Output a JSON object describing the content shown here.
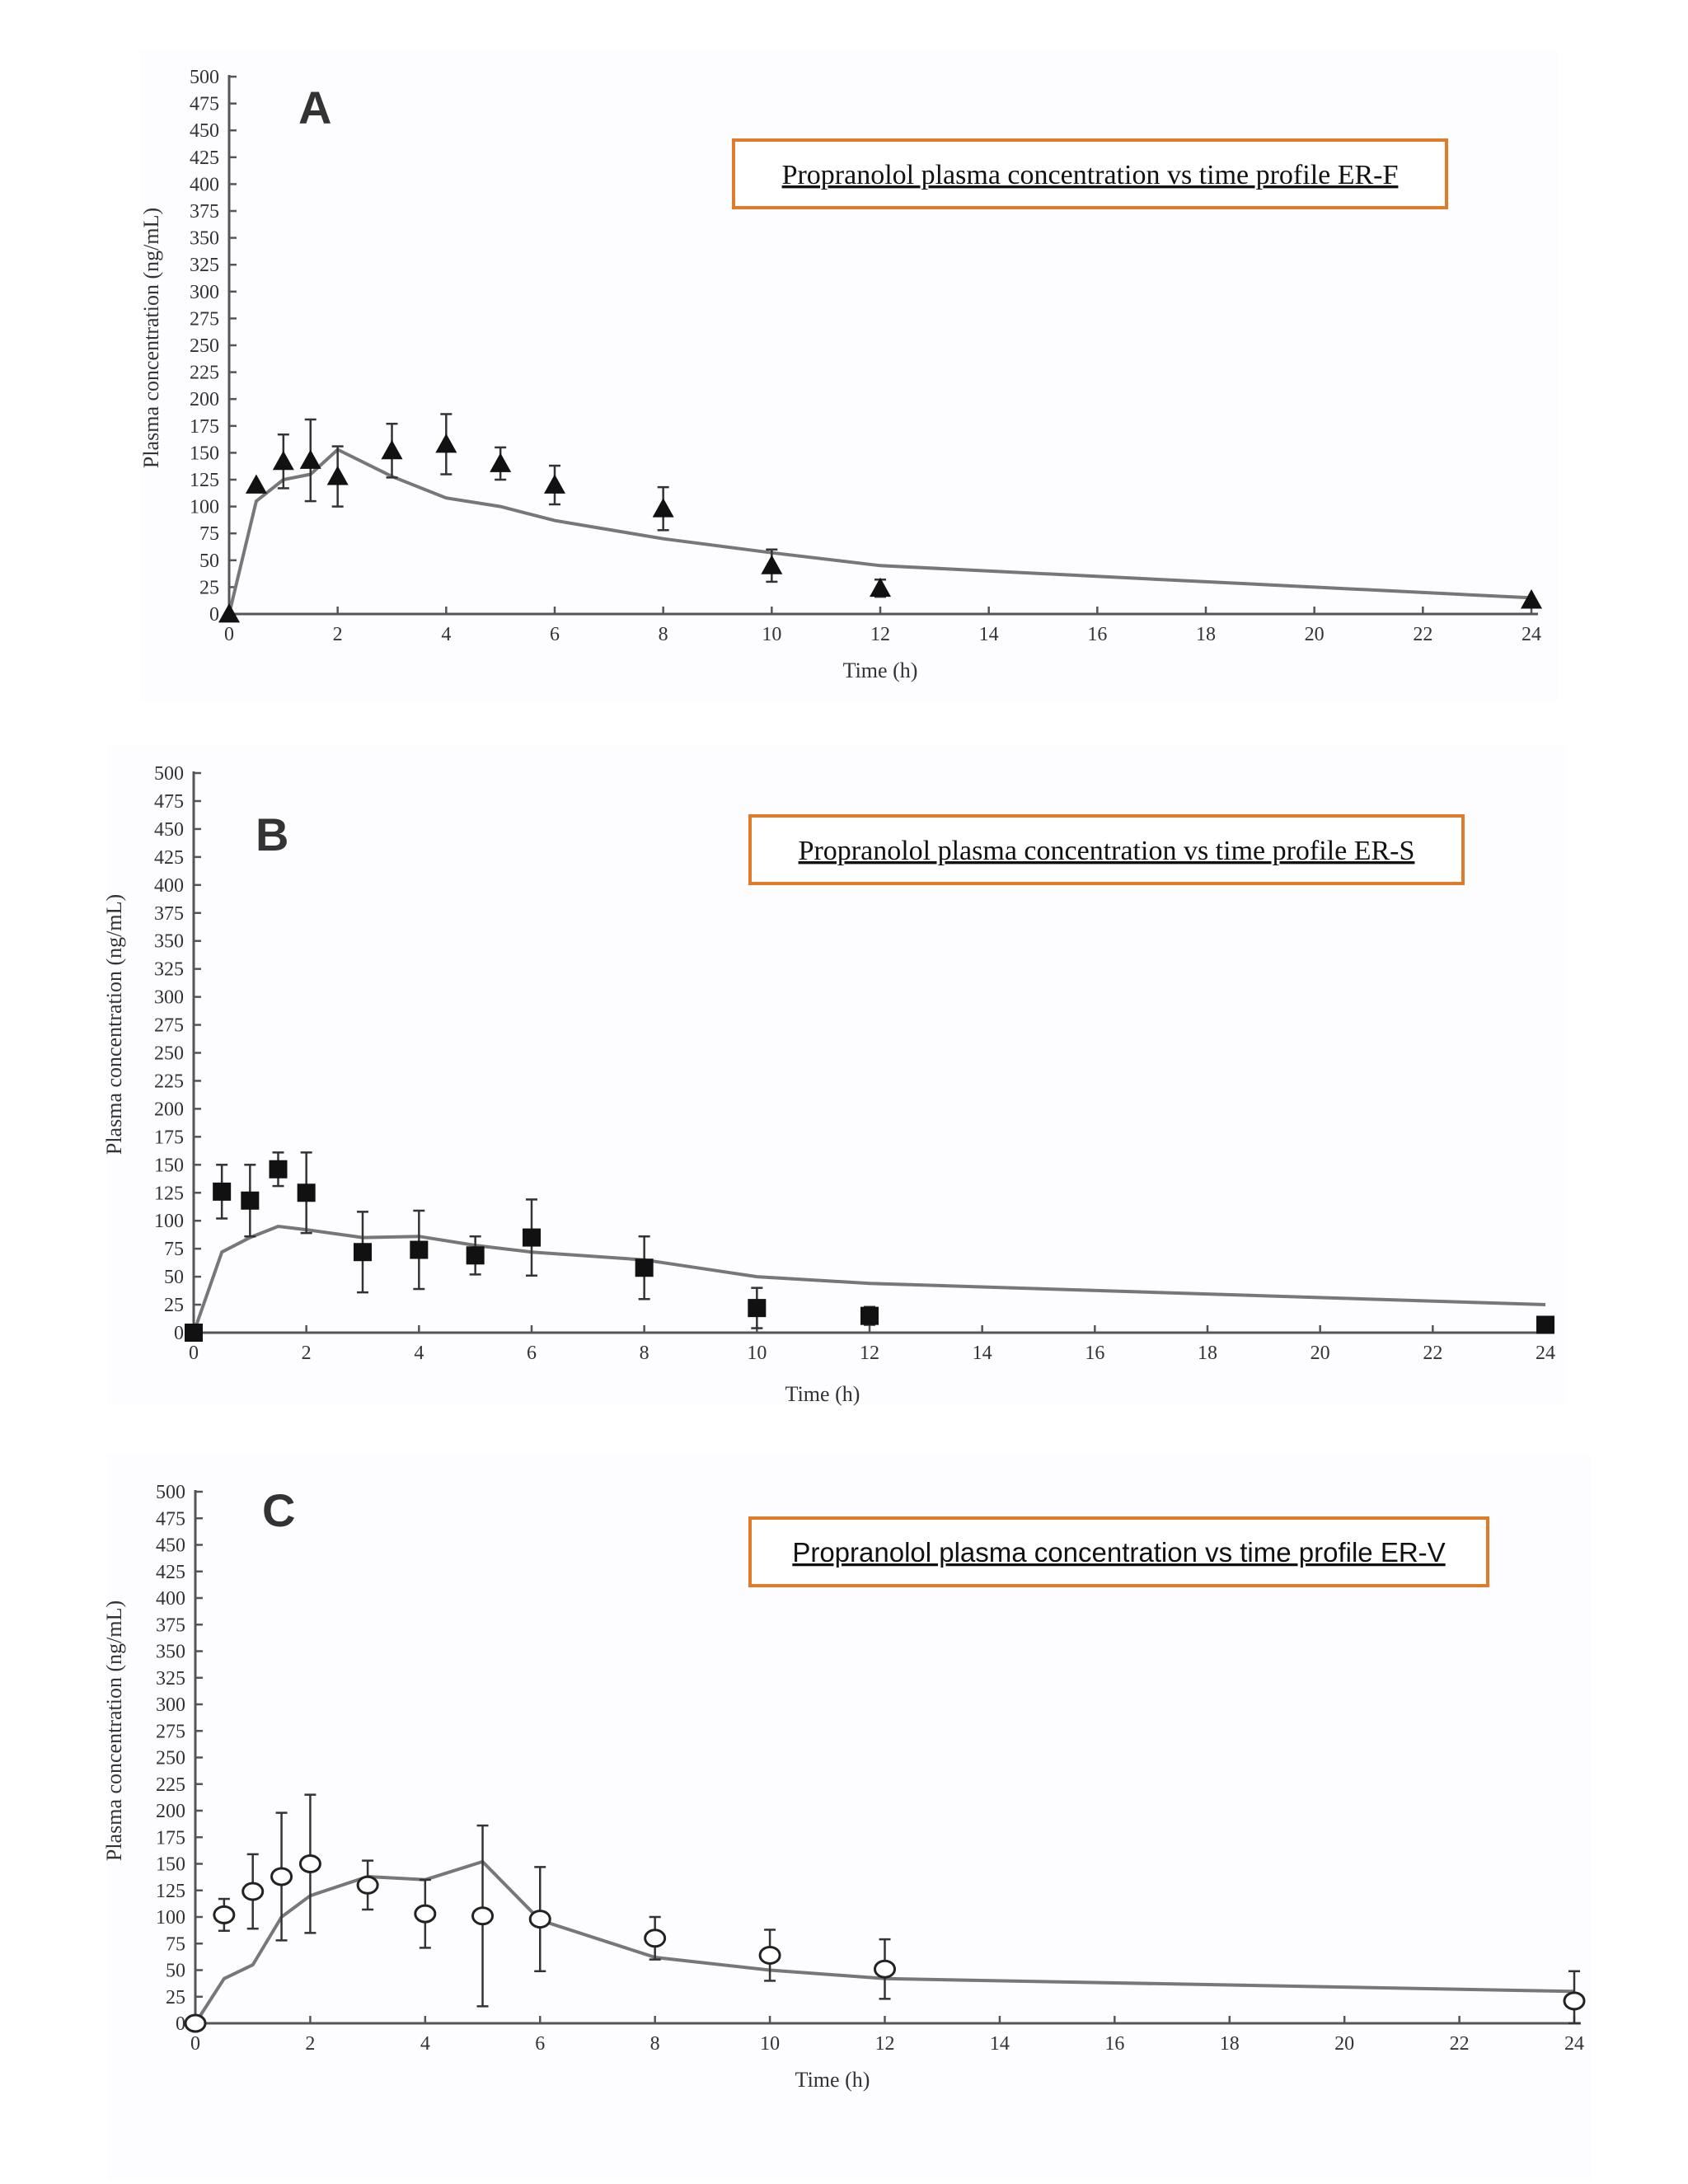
{
  "chart_data": [
    {
      "type": "line",
      "panel_label": "A",
      "box_title": "Propranolol plasma concentration vs time profile ER-F",
      "xlabel": "Time (h)",
      "ylabel": "Plasma concentration (ng/mL)",
      "xlim": [
        0,
        24
      ],
      "ylim": [
        0,
        500
      ],
      "x_ticks": [
        0,
        2,
        4,
        6,
        8,
        10,
        12,
        14,
        16,
        18,
        20,
        22,
        24
      ],
      "y_ticks": [
        0,
        25,
        50,
        75,
        100,
        125,
        150,
        175,
        200,
        225,
        250,
        275,
        300,
        325,
        350,
        375,
        400,
        425,
        450,
        475,
        500
      ],
      "grid": false,
      "series": [
        {
          "kind": "line",
          "color": "#777777",
          "x": [
            0,
            0.5,
            1,
            1.5,
            2,
            3,
            4,
            5,
            6,
            8,
            10,
            12,
            24
          ],
          "y": [
            0,
            105,
            125,
            130,
            153,
            128,
            108,
            100,
            87,
            70,
            57,
            45,
            15
          ]
        },
        {
          "kind": "points",
          "marker": "triangle",
          "color": "#111111",
          "x": [
            0,
            0.5,
            1,
            1.5,
            2,
            3,
            4,
            5,
            6,
            8,
            10,
            12,
            24
          ],
          "y": [
            0,
            120,
            142,
            143,
            128,
            152,
            158,
            140,
            120,
            98,
            45,
            24,
            13
          ],
          "err": [
            0,
            0,
            25,
            38,
            28,
            25,
            28,
            15,
            18,
            20,
            15,
            8,
            0
          ]
        }
      ]
    },
    {
      "type": "line",
      "panel_label": "B",
      "box_title": "Propranolol plasma concentration vs time profile ER-S",
      "xlabel": "Time (h)",
      "ylabel": "Plasma concentration (ng/mL)",
      "xlim": [
        0,
        24
      ],
      "ylim": [
        0,
        500
      ],
      "x_ticks": [
        0,
        2,
        4,
        6,
        8,
        10,
        12,
        14,
        16,
        18,
        20,
        22,
        24
      ],
      "y_ticks": [
        0,
        25,
        50,
        75,
        100,
        125,
        150,
        175,
        200,
        225,
        250,
        275,
        300,
        325,
        350,
        375,
        400,
        425,
        450,
        475,
        500
      ],
      "grid": false,
      "series": [
        {
          "kind": "line",
          "color": "#777777",
          "x": [
            0,
            0.5,
            1,
            1.5,
            2,
            3,
            4,
            5,
            6,
            8,
            10,
            12,
            24
          ],
          "y": [
            0,
            72,
            85,
            95,
            92,
            85,
            86,
            78,
            72,
            65,
            50,
            44,
            25
          ]
        },
        {
          "kind": "points",
          "marker": "square",
          "color": "#111111",
          "x": [
            0,
            0.5,
            1,
            1.5,
            2,
            3,
            4,
            5,
            6,
            8,
            10,
            12,
            24
          ],
          "y": [
            0,
            126,
            118,
            146,
            125,
            72,
            74,
            69,
            85,
            58,
            22,
            15,
            7
          ],
          "err": [
            0,
            24,
            32,
            15,
            36,
            36,
            35,
            17,
            34,
            28,
            18,
            8,
            0
          ]
        }
      ]
    },
    {
      "type": "line",
      "panel_label": "C",
      "box_title": "Propranolol plasma concentration vs time profile ER-V",
      "xlabel": "Time (h)",
      "ylabel": "Plasma concentration (ng/mL)",
      "xlim": [
        0,
        24
      ],
      "ylim": [
        0,
        500
      ],
      "x_ticks": [
        0,
        2,
        4,
        6,
        8,
        10,
        12,
        14,
        16,
        18,
        20,
        22,
        24
      ],
      "y_ticks": [
        0,
        25,
        50,
        75,
        100,
        125,
        150,
        175,
        200,
        225,
        250,
        275,
        300,
        325,
        350,
        375,
        400,
        425,
        450,
        475,
        500
      ],
      "grid": false,
      "series": [
        {
          "kind": "line",
          "color": "#777777",
          "x": [
            0,
            0.5,
            1,
            1.5,
            2,
            3,
            4,
            5,
            6,
            8,
            10,
            12,
            24
          ],
          "y": [
            0,
            42,
            55,
            100,
            120,
            138,
            135,
            152,
            97,
            62,
            50,
            42,
            30
          ]
        },
        {
          "kind": "points",
          "marker": "circle-open",
          "color": "#222222",
          "x": [
            0,
            0.5,
            1,
            1.5,
            2,
            3,
            4,
            5,
            6,
            8,
            10,
            12,
            24
          ],
          "y": [
            0,
            102,
            124,
            138,
            150,
            130,
            103,
            101,
            98,
            80,
            64,
            51,
            21
          ],
          "err": [
            0,
            15,
            35,
            60,
            65,
            23,
            32,
            85,
            49,
            20,
            24,
            28,
            28
          ]
        }
      ]
    }
  ]
}
